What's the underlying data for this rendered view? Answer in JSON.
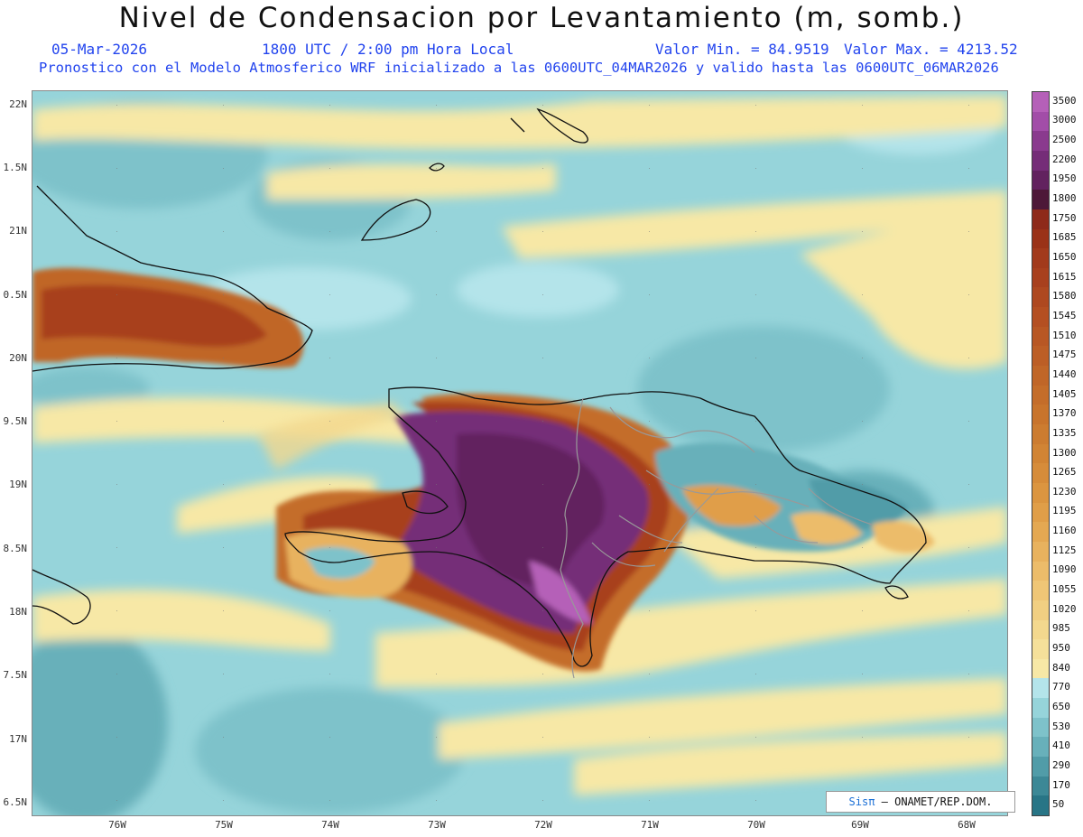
{
  "header": {
    "title": "Nivel de Condensacion por Levantamiento (m, somb.)",
    "date": "05-Mar-2026",
    "time": "1800 UTC / 2:00 pm Hora Local",
    "valor_min": "Valor Min. = 84.9519",
    "valor_max": "Valor Max. = 4213.52",
    "forecast": "Pronostico con el Modelo Atmosferico WRF inicializado a las 0600UTC_04MAR2026 y valido hasta las  0600UTC_06MAR2026"
  },
  "axes": {
    "lat_labels": [
      "22N",
      "1.5N",
      "21N",
      "0.5N",
      "20N",
      "9.5N",
      "19N",
      "8.5N",
      "18N",
      "7.5N",
      "17N",
      "6.5N"
    ],
    "lon_labels": [
      "76W",
      "75W",
      "74W",
      "73W",
      "72W",
      "71W",
      "70W",
      "69W",
      "68W"
    ]
  },
  "legend": {
    "labels": [
      "3500",
      "3000",
      "2500",
      "2200",
      "1950",
      "1800",
      "1750",
      "1685",
      "1650",
      "1615",
      "1580",
      "1545",
      "1510",
      "1475",
      "1440",
      "1405",
      "1370",
      "1335",
      "1300",
      "1265",
      "1230",
      "1195",
      "1160",
      "1125",
      "1090",
      "1055",
      "1020",
      "985",
      "950",
      "840",
      "770",
      "650",
      "530",
      "410",
      "290",
      "170",
      "50"
    ],
    "colors": [
      "#b560b8",
      "#a24da8",
      "#8a3a8e",
      "#752d78",
      "#62225f",
      "#4d1838",
      "#8e2a1a",
      "#9a3218",
      "#a23a1c",
      "#a8401e",
      "#ae4820",
      "#b44f22",
      "#b85724",
      "#bc5e26",
      "#c06628",
      "#c46d2a",
      "#c8742c",
      "#cc7c30",
      "#d18434",
      "#d68c3a",
      "#db9540",
      "#e09e48",
      "#e4a852",
      "#e8b25e",
      "#ecbc6a",
      "#efc676",
      "#f1cf82",
      "#f3d88e",
      "#f5e09a",
      "#f7e8a6",
      "#b4e4ea",
      "#96d4da",
      "#7ec2ca",
      "#68b0ba",
      "#519ca8",
      "#3c8896",
      "#287586"
    ]
  },
  "credit": {
    "sis": "Sisπ",
    "text": "– ONAMET/REP.DOM."
  }
}
